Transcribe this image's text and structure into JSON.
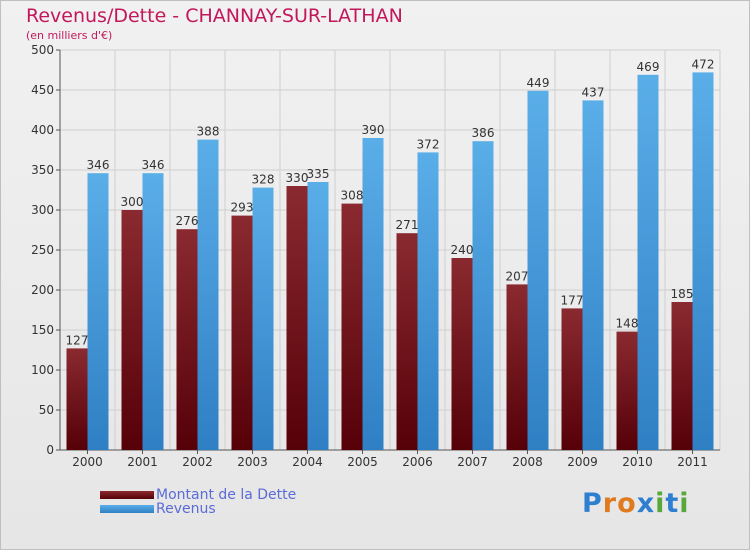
{
  "chart_data": {
    "type": "bar",
    "title": "Revenus/Dette - CHANNAY-SUR-LATHAN",
    "subtitle": "(en milliers d'€)",
    "categories": [
      "2000",
      "2001",
      "2002",
      "2003",
      "2004",
      "2005",
      "2006",
      "2007",
      "2008",
      "2009",
      "2010",
      "2011"
    ],
    "series": [
      {
        "name": "Montant de la Dette",
        "color": "#6b0f17",
        "values": [
          127,
          300,
          276,
          293,
          330,
          308,
          271,
          240,
          207,
          177,
          148,
          185
        ]
      },
      {
        "name": "Revenus",
        "color": "#3b8fd6",
        "values": [
          346,
          346,
          388,
          328,
          335,
          390,
          372,
          386,
          449,
          437,
          469,
          472
        ]
      }
    ],
    "ylim": [
      0,
      500
    ],
    "yticks": [
      0,
      50,
      100,
      150,
      200,
      250,
      300,
      350,
      400,
      450,
      500
    ],
    "grid": true,
    "legend": "bottom-left"
  },
  "logo": {
    "text": "Proxiti",
    "letters": [
      "P",
      "r",
      "o",
      "x",
      "i",
      "t",
      "i"
    ],
    "colors": [
      "#2f7fd0",
      "#e07a1f",
      "#e07a1f",
      "#2f7fd0",
      "#56a83a",
      "#2f7fd0",
      "#56a83a"
    ]
  }
}
